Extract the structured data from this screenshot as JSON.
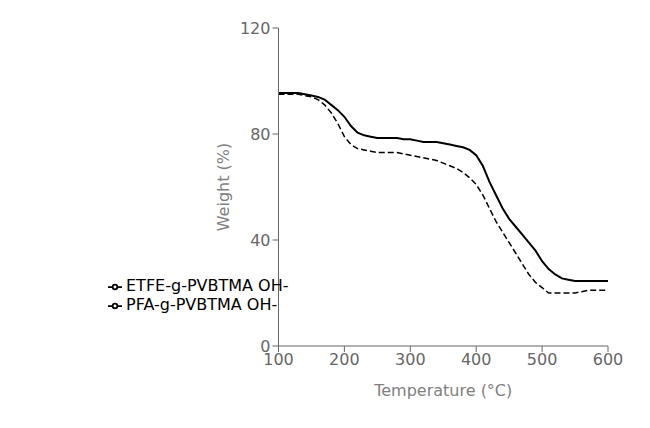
{
  "chart_data": {
    "type": "line",
    "xlabel": "Temperature (°C)",
    "ylabel": "Weight (%)",
    "x": [
      100,
      110,
      120,
      130,
      140,
      150,
      160,
      170,
      180,
      190,
      200,
      210,
      220,
      230,
      240,
      250,
      260,
      270,
      280,
      290,
      300,
      310,
      320,
      330,
      340,
      350,
      360,
      370,
      380,
      390,
      400,
      410,
      420,
      430,
      440,
      450,
      460,
      470,
      480,
      490,
      500,
      510,
      520,
      530,
      540,
      550,
      560,
      570,
      580,
      590,
      600
    ],
    "series": [
      {
        "name": "ETFE-g-PVBTMA OH-",
        "color": "#000000",
        "line_style": "dashed",
        "values": [
          95,
          95,
          95,
          95,
          94.5,
          94,
          93,
          91,
          88,
          84,
          79,
          76,
          74.5,
          74,
          73.5,
          73,
          73,
          73,
          73,
          72.5,
          72,
          71.5,
          71,
          70.5,
          70,
          69,
          68,
          67,
          65.5,
          63.5,
          61,
          57,
          52,
          47,
          43,
          39,
          35,
          31,
          27,
          24,
          22,
          20,
          20,
          20,
          20,
          20,
          20.5,
          21,
          21,
          21,
          21
        ]
      },
      {
        "name": "PFA-g-PVBTMA OH-",
        "color": "#000000",
        "line_style": "solid",
        "values": [
          95.5,
          95.5,
          95.5,
          95.5,
          95,
          94.5,
          94,
          93,
          91,
          89,
          86.5,
          83,
          80.5,
          79.5,
          79,
          78.5,
          78.5,
          78.5,
          78.5,
          78,
          78,
          77.5,
          77,
          77,
          77,
          76.5,
          76,
          75.5,
          75,
          74,
          72,
          68,
          62,
          57,
          52,
          48,
          45,
          42,
          39,
          36,
          32,
          29,
          27,
          25.5,
          25,
          24.5,
          24.5,
          24.5,
          24.5,
          24.5,
          24.5
        ]
      }
    ],
    "xlim": [
      100,
      600
    ],
    "ylim": [
      0,
      120
    ],
    "xticks": [
      100,
      200,
      300,
      400,
      500,
      600
    ],
    "yticks": [
      0,
      40,
      80,
      120
    ],
    "grid": false,
    "legend": "lower left"
  }
}
